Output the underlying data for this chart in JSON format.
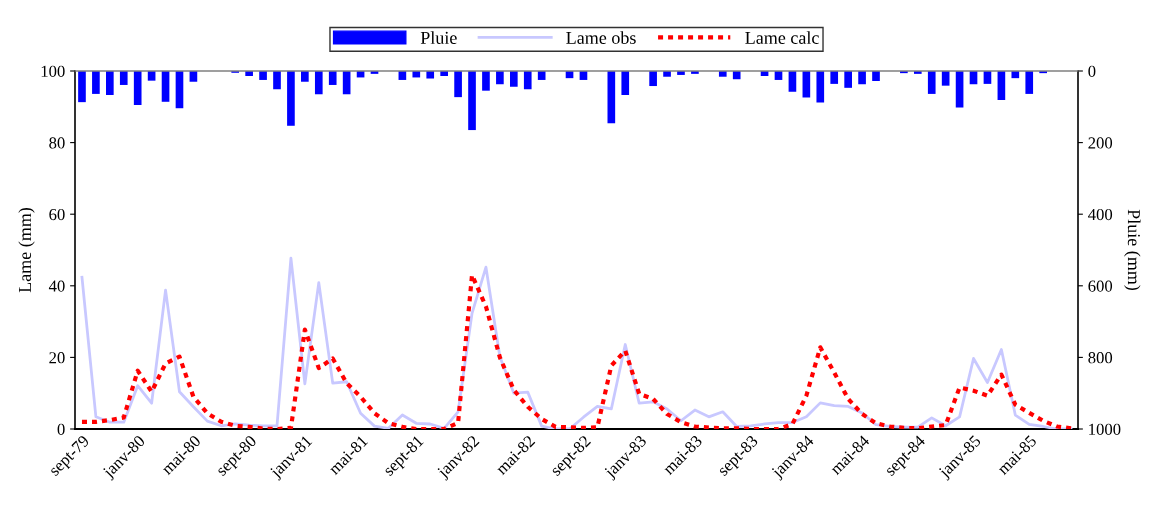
{
  "chart_data": {
    "type": "line",
    "ylabel": "Lame (mm)",
    "y2label": "Pluie (mm)",
    "categories": [
      "sept-79",
      null,
      null,
      null,
      "janv-80",
      null,
      null,
      null,
      "mai-80",
      null,
      null,
      null,
      "sept-80",
      null,
      null,
      null,
      "janv-81",
      null,
      null,
      null,
      "mai-81",
      null,
      null,
      null,
      "sept-81",
      null,
      null,
      null,
      "janv-82",
      null,
      null,
      null,
      "mai-82",
      null,
      null,
      null,
      "sept-82",
      null,
      null,
      null,
      "janv-83",
      null,
      null,
      null,
      "mai-83",
      null,
      null,
      null,
      "sept-83",
      null,
      null,
      null,
      "janv-84",
      null,
      null,
      null,
      "mai-84",
      null,
      null,
      null,
      "sept-84",
      null,
      null,
      null,
      "janv-85",
      null,
      null,
      null,
      "mai-85",
      null,
      null,
      null
    ],
    "ylim": [
      0,
      100
    ],
    "yticks": [
      0,
      20,
      40,
      60,
      80,
      100
    ],
    "y2lim": [
      1000,
      0
    ],
    "y2ticks": [
      0,
      200,
      400,
      600,
      800,
      1000
    ],
    "legend": "top",
    "grid": false,
    "series": [
      {
        "name": "Pluie",
        "type": "bar",
        "axis": "y2",
        "color": "#0000ff",
        "values": [
          87,
          64,
          67,
          39,
          95,
          27,
          86,
          104,
          30,
          0,
          0,
          5,
          14,
          25,
          51,
          153,
          30,
          65,
          39,
          65,
          18,
          8,
          0,
          25,
          18,
          21,
          14,
          73,
          165,
          55,
          37,
          44,
          51,
          25,
          0,
          20,
          25,
          0,
          146,
          67,
          0,
          42,
          16,
          11,
          8,
          0,
          16,
          23,
          0,
          14,
          25,
          58,
          74,
          88,
          36,
          47,
          37,
          28,
          0,
          6,
          8,
          64,
          41,
          102,
          37,
          36,
          81,
          20,
          64,
          6,
          0,
          0
        ]
      },
      {
        "name": "Lame obs",
        "color": "#c8c8ff",
        "line_style": "solid",
        "values": [
          42.4,
          3.4,
          1.9,
          1.9,
          12.1,
          7.2,
          38.8,
          10.4,
          6.2,
          2.2,
          0.9,
          1.4,
          1.1,
          0.9,
          0.9,
          47.7,
          12.6,
          40.9,
          12.8,
          13.2,
          4.4,
          0.8,
          0.2,
          3.9,
          1.6,
          1.4,
          0.2,
          4.8,
          32.3,
          45.2,
          20.2,
          10.0,
          10.3,
          0.8,
          0,
          0,
          3.3,
          6.3,
          5.6,
          23.6,
          7.2,
          7.6,
          5.6,
          2.3,
          5.3,
          3.4,
          4.8,
          0.7,
          0.9,
          1.4,
          1.8,
          1.8,
          3.4,
          7.3,
          6.5,
          6.3,
          4.5,
          1.2,
          0.7,
          0.5,
          0.5,
          3.1,
          0.9,
          3.4,
          19.7,
          13.0,
          22.2,
          3.9,
          1.3,
          0.7,
          0,
          0
        ]
      },
      {
        "name": "Lame calc",
        "color": "#ff0000",
        "line_style": "dotted",
        "values": [
          2.0,
          2.0,
          2.5,
          3.2,
          16.3,
          10.4,
          18.3,
          20.2,
          9.0,
          4.4,
          2.0,
          0.9,
          0.6,
          0.1,
          0,
          0.3,
          27.8,
          17.0,
          19.7,
          12.8,
          9.0,
          4.4,
          1.6,
          0.6,
          0,
          0,
          0,
          1.7,
          43.0,
          34.2,
          20.0,
          10.9,
          6.2,
          2.8,
          0.6,
          0.5,
          0.3,
          0.5,
          17.7,
          21.9,
          9.8,
          8.4,
          4.2,
          1.9,
          0.7,
          0.4,
          0.2,
          0.2,
          0,
          0,
          0,
          1.4,
          9.3,
          22.8,
          15.8,
          8.4,
          4.2,
          1.6,
          0.7,
          0.3,
          0.2,
          0.7,
          1.1,
          11.6,
          10.7,
          9.3,
          15.2,
          6.8,
          4.5,
          2.3,
          0.7,
          0.2
        ]
      }
    ]
  }
}
